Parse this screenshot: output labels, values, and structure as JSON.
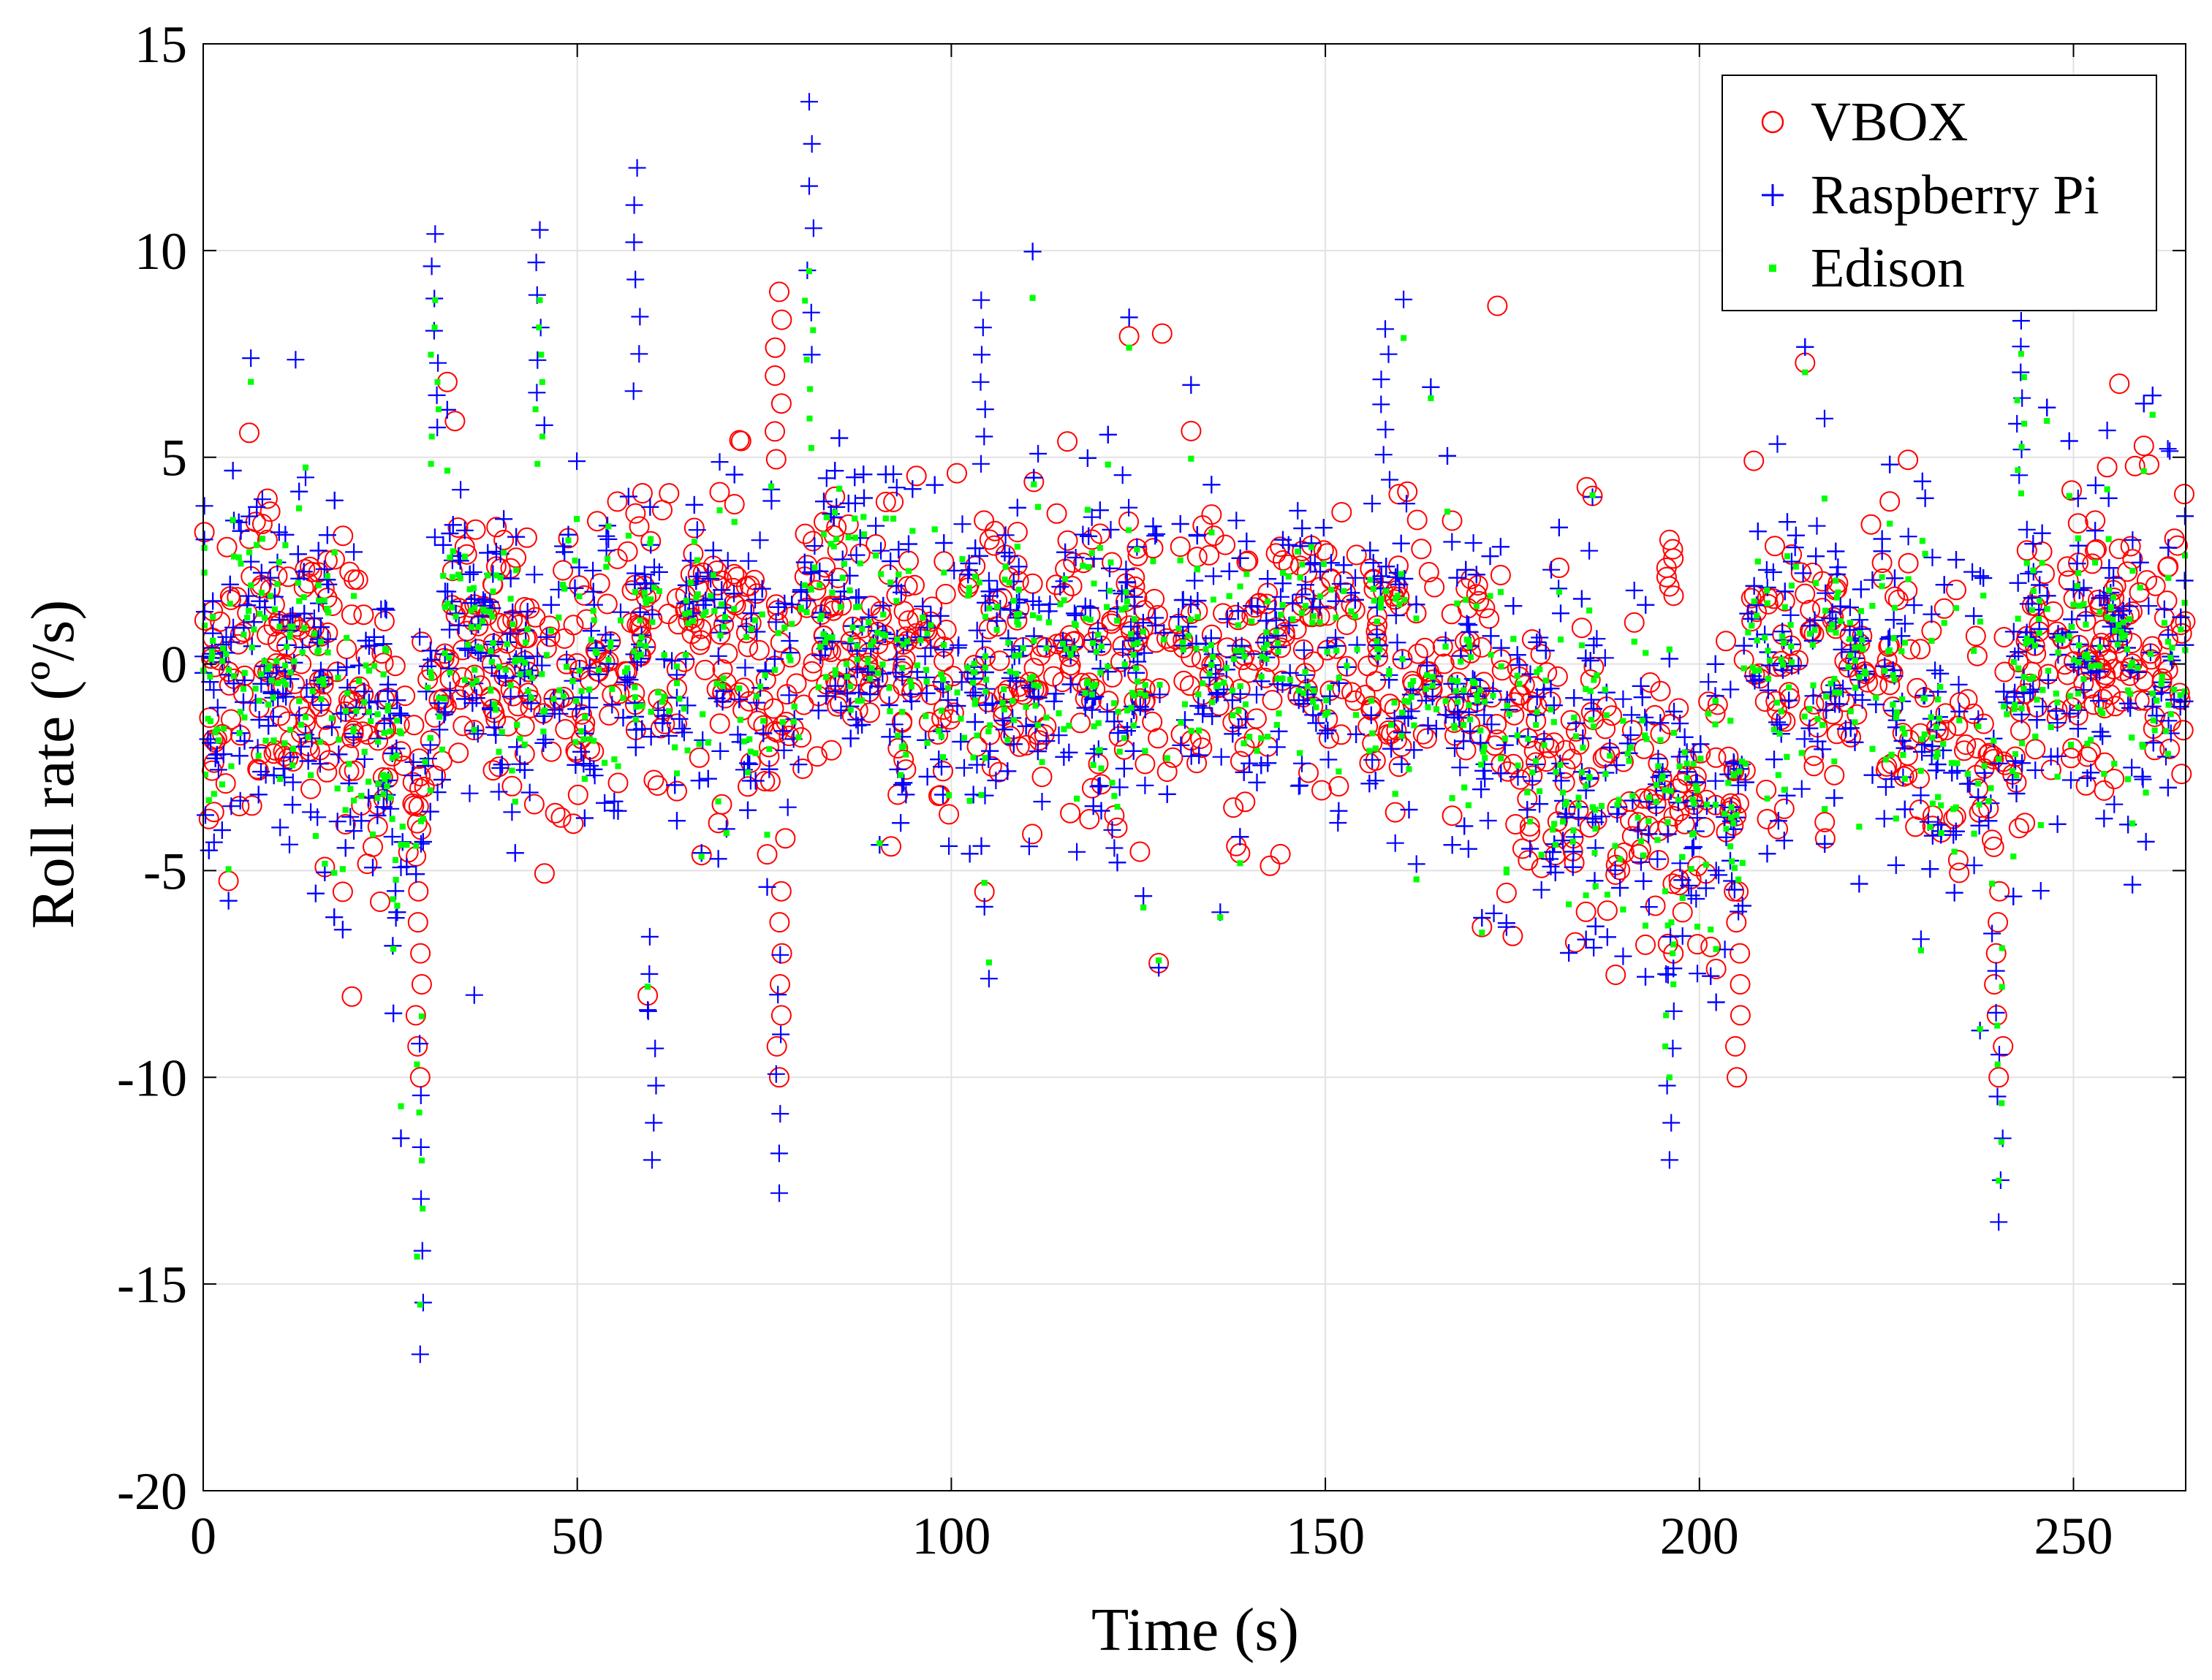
{
  "chart_data": {
    "type": "scatter",
    "title": "",
    "xlabel": "Time (s)",
    "ylabel": "Roll rate (º/s)",
    "xlim": [
      0,
      265
    ],
    "ylim": [
      -20,
      15
    ],
    "xticks": [
      "0",
      "50",
      "100",
      "150",
      "200",
      "250"
    ],
    "yticks": [
      "-20",
      "-15",
      "-10",
      "-5",
      "0",
      "5",
      "10",
      "15"
    ],
    "grid": true,
    "legend_position": "top-right",
    "colors": {
      "vbox": "#ff0000",
      "raspberry": "#0000ff",
      "edison": "#00ff00"
    },
    "series": [
      {
        "name": "VBOX",
        "marker": "circle",
        "approx_mean_profile": [
          [
            0,
            0
          ],
          [
            10,
            0.5
          ],
          [
            19,
            -1
          ],
          [
            23,
            -2
          ],
          [
            27,
            -3
          ],
          [
            30,
            -2
          ],
          [
            33,
            1
          ],
          [
            40,
            0.5
          ],
          [
            46,
            -1
          ],
          [
            55,
            0.5
          ],
          [
            70,
            0.5
          ],
          [
            77,
            -1
          ],
          [
            82,
            1
          ],
          [
            100,
            0.2
          ],
          [
            120,
            0.3
          ],
          [
            135,
            0
          ],
          [
            150,
            0
          ],
          [
            165,
            0.2
          ],
          [
            172,
            -1
          ],
          [
            180,
            -2.5
          ],
          [
            195,
            -3
          ],
          [
            205,
            -3.5
          ],
          [
            207,
            0.5
          ],
          [
            220,
            0
          ],
          [
            230,
            -1
          ],
          [
            235,
            -2
          ],
          [
            242,
            -2
          ],
          [
            244,
            0.5
          ],
          [
            255,
            0.3
          ],
          [
            265,
            0
          ]
        ],
        "approx_spread": 2.5,
        "extremes": [
          [
            29,
            -10
          ],
          [
            77,
            9
          ],
          [
            77,
            -10
          ],
          [
            196,
            3
          ],
          [
            205,
            -10
          ],
          [
            240,
            -10
          ]
        ]
      },
      {
        "name": "Raspberry Pi",
        "marker": "plus",
        "approx_mean_profile": [
          [
            0,
            0
          ],
          [
            10,
            0.5
          ],
          [
            19,
            -1
          ],
          [
            23,
            -2
          ],
          [
            27,
            -3
          ],
          [
            30,
            -2
          ],
          [
            33,
            1
          ],
          [
            40,
            0.5
          ],
          [
            46,
            -1
          ],
          [
            55,
            0.5
          ],
          [
            70,
            0.5
          ],
          [
            77,
            -1
          ],
          [
            82,
            1
          ],
          [
            100,
            0.2
          ],
          [
            120,
            0.3
          ],
          [
            135,
            0
          ],
          [
            150,
            0
          ],
          [
            165,
            0.2
          ],
          [
            172,
            -1
          ],
          [
            180,
            -2.5
          ],
          [
            195,
            -3
          ],
          [
            205,
            -3.5
          ],
          [
            207,
            0.5
          ],
          [
            220,
            0
          ],
          [
            230,
            -1
          ],
          [
            235,
            -2
          ],
          [
            242,
            -2
          ],
          [
            244,
            0.5
          ],
          [
            255,
            0.3
          ],
          [
            265,
            0
          ]
        ],
        "approx_spread": 3.0,
        "extremes": [
          [
            29,
            -16.7
          ],
          [
            31,
            10.4
          ],
          [
            45,
            10.5
          ],
          [
            58,
            12
          ],
          [
            60,
            -12
          ],
          [
            77,
            -12.8
          ],
          [
            81,
            13.6
          ],
          [
            104,
            8.8
          ],
          [
            158,
            8.1
          ],
          [
            196,
            -12
          ],
          [
            240,
            -13.5
          ],
          [
            243,
            8.3
          ]
        ]
      },
      {
        "name": "Edison",
        "marker": "dot",
        "approx_mean_profile": [
          [
            0,
            0
          ],
          [
            10,
            0.5
          ],
          [
            19,
            -1
          ],
          [
            23,
            -2
          ],
          [
            27,
            -3
          ],
          [
            30,
            -2
          ],
          [
            33,
            1
          ],
          [
            40,
            0.5
          ],
          [
            46,
            -1
          ],
          [
            55,
            0.5
          ],
          [
            70,
            0.5
          ],
          [
            77,
            -1
          ],
          [
            82,
            1
          ],
          [
            100,
            0.2
          ],
          [
            120,
            0.3
          ],
          [
            135,
            0
          ],
          [
            150,
            0
          ],
          [
            165,
            0.2
          ],
          [
            172,
            -1
          ],
          [
            180,
            -2.5
          ],
          [
            195,
            -3
          ],
          [
            205,
            -3.5
          ],
          [
            207,
            0.5
          ],
          [
            220,
            0
          ],
          [
            230,
            -1
          ],
          [
            235,
            -2
          ],
          [
            242,
            -2
          ],
          [
            244,
            0.5
          ],
          [
            255,
            0.3
          ],
          [
            265,
            0
          ]
        ],
        "approx_spread": 2.2,
        "extremes": [
          [
            29,
            -15.5
          ],
          [
            31,
            8.8
          ],
          [
            45,
            8.8
          ],
          [
            81,
            9.5
          ],
          [
            196,
            -10
          ],
          [
            240,
            -12.5
          ],
          [
            243,
            7.5
          ]
        ]
      }
    ]
  }
}
